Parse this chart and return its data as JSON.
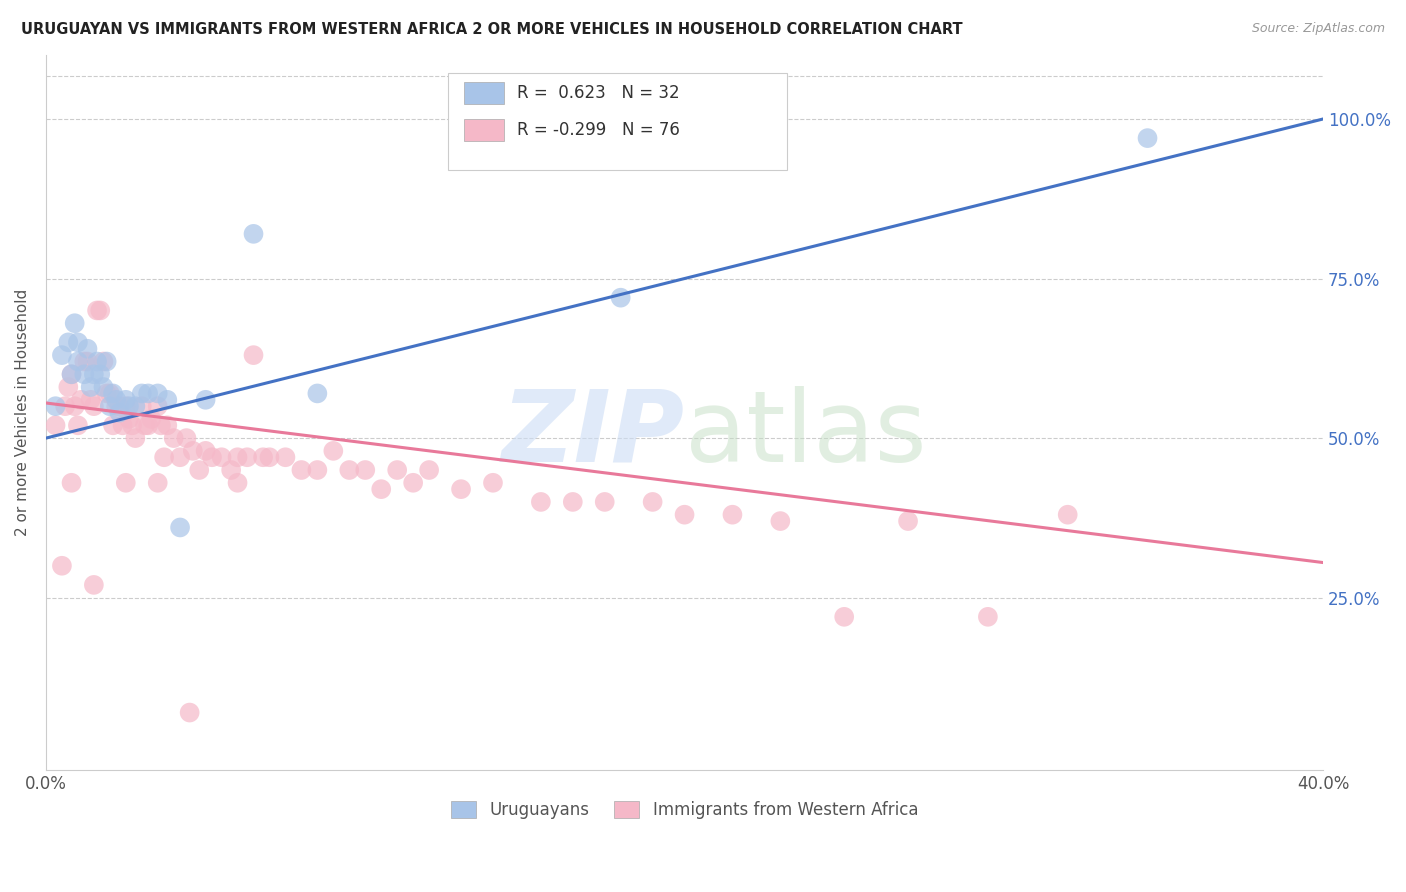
{
  "title": "URUGUAYAN VS IMMIGRANTS FROM WESTERN AFRICA 2 OR MORE VEHICLES IN HOUSEHOLD CORRELATION CHART",
  "source": "Source: ZipAtlas.com",
  "ylabel": "2 or more Vehicles in Household",
  "xlim": [
    0.0,
    0.4
  ],
  "ylim": [
    -0.02,
    1.1
  ],
  "ytick_vals": [
    0.25,
    0.5,
    0.75,
    1.0
  ],
  "ytick_labels": [
    "25.0%",
    "50.0%",
    "75.0%",
    "100.0%"
  ],
  "xtick_vals": [
    0.0,
    0.08,
    0.16,
    0.24,
    0.32,
    0.4
  ],
  "xtick_labels": [
    "0.0%",
    "",
    "",
    "",
    "",
    "40.0%"
  ],
  "blue_R": 0.623,
  "blue_N": 32,
  "pink_R": -0.299,
  "pink_N": 76,
  "blue_color": "#a8c4e8",
  "pink_color": "#f5b8c8",
  "blue_line_color": "#4472c4",
  "pink_line_color": "#e8799a",
  "legend_labels": [
    "Uruguayans",
    "Immigrants from Western Africa"
  ],
  "blue_line_x0": 0.0,
  "blue_line_y0": 0.5,
  "blue_line_x1": 0.4,
  "blue_line_y1": 1.0,
  "pink_line_x0": 0.0,
  "pink_line_y0": 0.555,
  "pink_line_x1": 0.4,
  "pink_line_y1": 0.305,
  "blue_scatter_x": [
    0.003,
    0.005,
    0.007,
    0.008,
    0.009,
    0.01,
    0.01,
    0.012,
    0.013,
    0.014,
    0.015,
    0.016,
    0.017,
    0.018,
    0.019,
    0.02,
    0.021,
    0.022,
    0.023,
    0.025,
    0.026,
    0.028,
    0.03,
    0.032,
    0.035,
    0.038,
    0.042,
    0.05,
    0.065,
    0.085,
    0.18,
    0.345
  ],
  "blue_scatter_y": [
    0.55,
    0.63,
    0.65,
    0.6,
    0.68,
    0.62,
    0.65,
    0.6,
    0.64,
    0.58,
    0.6,
    0.62,
    0.6,
    0.58,
    0.62,
    0.55,
    0.57,
    0.56,
    0.54,
    0.56,
    0.55,
    0.55,
    0.57,
    0.57,
    0.57,
    0.56,
    0.36,
    0.56,
    0.82,
    0.57,
    0.72,
    0.97
  ],
  "pink_scatter_x": [
    0.003,
    0.005,
    0.006,
    0.007,
    0.008,
    0.009,
    0.01,
    0.011,
    0.012,
    0.013,
    0.014,
    0.015,
    0.016,
    0.017,
    0.018,
    0.019,
    0.02,
    0.021,
    0.022,
    0.023,
    0.024,
    0.025,
    0.026,
    0.027,
    0.028,
    0.03,
    0.031,
    0.032,
    0.033,
    0.035,
    0.036,
    0.037,
    0.038,
    0.04,
    0.042,
    0.044,
    0.046,
    0.048,
    0.05,
    0.052,
    0.055,
    0.058,
    0.06,
    0.063,
    0.065,
    0.068,
    0.07,
    0.075,
    0.08,
    0.085,
    0.09,
    0.095,
    0.1,
    0.105,
    0.11,
    0.115,
    0.12,
    0.13,
    0.14,
    0.155,
    0.165,
    0.175,
    0.19,
    0.2,
    0.215,
    0.23,
    0.25,
    0.27,
    0.295,
    0.32,
    0.008,
    0.015,
    0.025,
    0.035,
    0.045,
    0.06
  ],
  "pink_scatter_y": [
    0.52,
    0.3,
    0.55,
    0.58,
    0.6,
    0.55,
    0.52,
    0.56,
    0.62,
    0.62,
    0.56,
    0.55,
    0.7,
    0.7,
    0.62,
    0.57,
    0.57,
    0.52,
    0.55,
    0.55,
    0.52,
    0.55,
    0.53,
    0.52,
    0.5,
    0.55,
    0.52,
    0.52,
    0.53,
    0.55,
    0.52,
    0.47,
    0.52,
    0.5,
    0.47,
    0.5,
    0.48,
    0.45,
    0.48,
    0.47,
    0.47,
    0.45,
    0.47,
    0.47,
    0.63,
    0.47,
    0.47,
    0.47,
    0.45,
    0.45,
    0.48,
    0.45,
    0.45,
    0.42,
    0.45,
    0.43,
    0.45,
    0.42,
    0.43,
    0.4,
    0.4,
    0.4,
    0.4,
    0.38,
    0.38,
    0.37,
    0.22,
    0.37,
    0.22,
    0.38,
    0.43,
    0.27,
    0.43,
    0.43,
    0.07,
    0.43
  ]
}
